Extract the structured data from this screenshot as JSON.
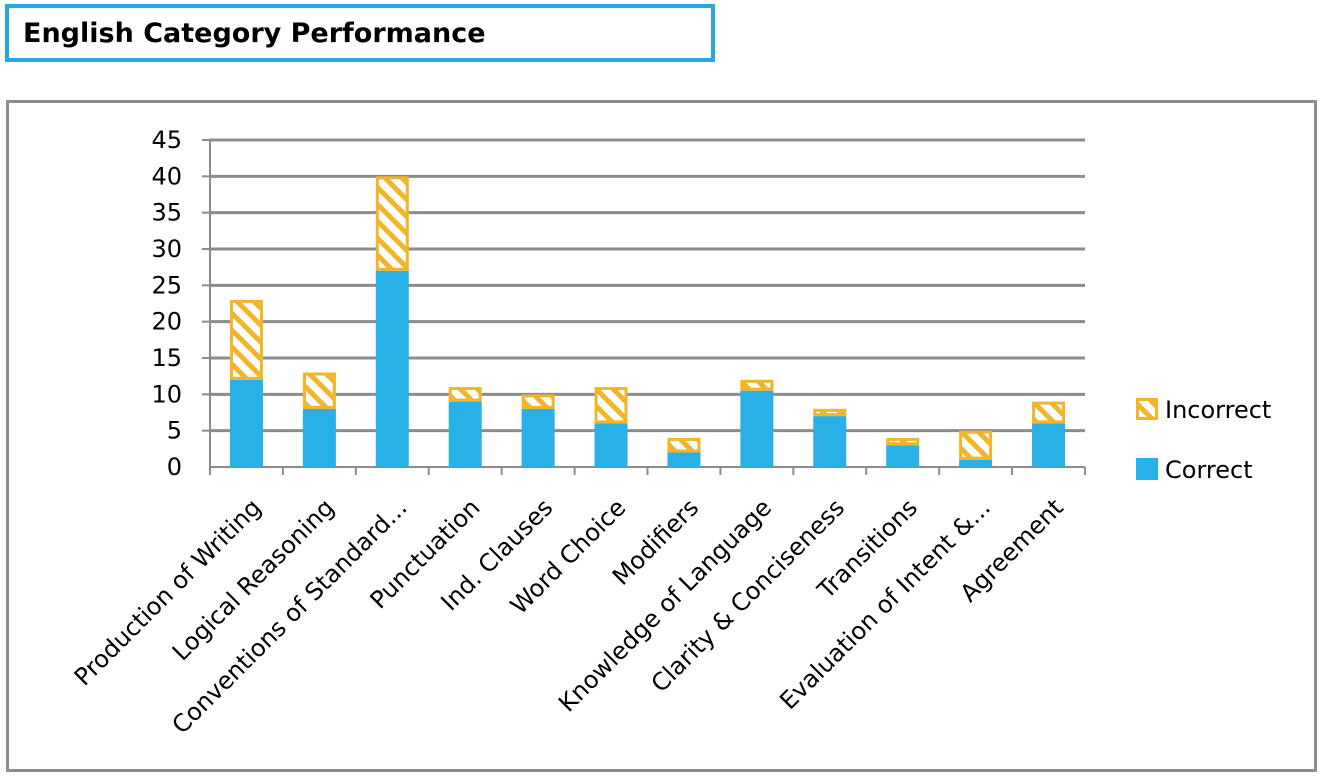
{
  "title": "English Category Performance",
  "chart_data": {
    "type": "bar",
    "stacked": true,
    "categories": [
      "Production of Writing",
      "Logical Reasoning",
      "Conventions of Standard...",
      "Punctuation",
      "Ind. Clauses",
      "Word Choice",
      "Modifiers",
      "Knowledge of Language",
      "Clarity & Conciseness",
      "Transitions",
      "Evaluation of  Intent &...",
      "Agreement"
    ],
    "series": [
      {
        "name": "Correct",
        "values": [
          12,
          8,
          27,
          9,
          8,
          6,
          2,
          10.5,
          7,
          3,
          1,
          6
        ],
        "color": "#29b0e6"
      },
      {
        "name": "Incorrect",
        "values": [
          11,
          5,
          13,
          2,
          2,
          5,
          2,
          1.5,
          1,
          1,
          4,
          3
        ],
        "color": "#f2b52a",
        "pattern": "diagonal-hatch"
      }
    ],
    "ylim": [
      0,
      45
    ],
    "yticks": [
      "0",
      "5",
      "10",
      "15",
      "20",
      "25",
      "30",
      "35",
      "40",
      "45"
    ],
    "grid": true,
    "legend_position": "right"
  }
}
